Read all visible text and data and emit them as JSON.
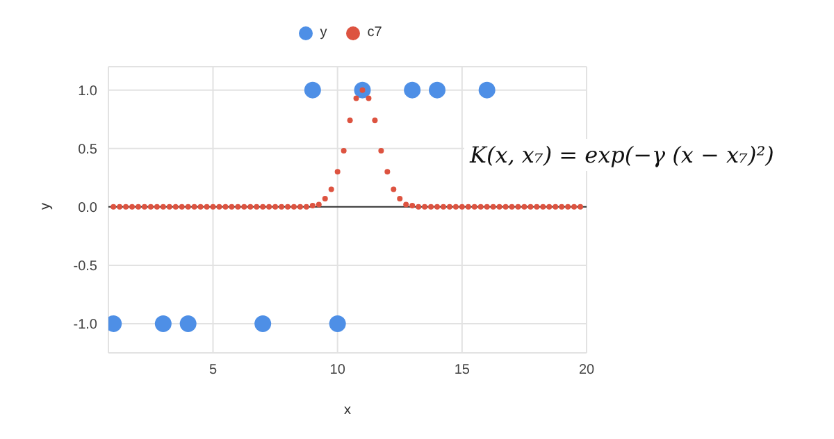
{
  "chart_data": {
    "type": "scatter",
    "xlabel": "x",
    "ylabel": "y",
    "xlim": [
      0.8,
      20
    ],
    "xticks": [
      5,
      10,
      15,
      20
    ],
    "ylim": [
      -1.25,
      1.2
    ],
    "yticks": [
      {
        "value": -1,
        "label": "-1.0"
      },
      {
        "value": -0.5,
        "label": "-0.5"
      },
      {
        "value": 0,
        "label": "0.0"
      },
      {
        "value": 0.5,
        "label": "0.5"
      },
      {
        "value": 1,
        "label": "1.0"
      }
    ],
    "grid": true,
    "legend": "top",
    "marker": "circle",
    "ref_lines": [
      {
        "axis": "y",
        "value": 0,
        "color": "#333333"
      }
    ],
    "annotations": [
      "K(x, x₇) = exp(−γ (x − x₇)²)"
    ],
    "series": [
      {
        "name": "y",
        "color": "#4e8fe6",
        "x": [
          1,
          3,
          4,
          7,
          9,
          10,
          11,
          13,
          14,
          16
        ],
        "values": [
          -1,
          -1,
          -1,
          -1,
          1,
          -1,
          1,
          1,
          1,
          1
        ]
      },
      {
        "name": "c7",
        "color": "#dd5340",
        "x": [
          1,
          1.25,
          1.5,
          1.75,
          2,
          2.25,
          2.5,
          2.75,
          3,
          3.25,
          3.5,
          3.75,
          4,
          4.25,
          4.5,
          4.75,
          5,
          5.25,
          5.5,
          5.75,
          6,
          6.25,
          6.5,
          6.75,
          7,
          7.25,
          7.5,
          7.75,
          8,
          8.25,
          8.5,
          8.75,
          9,
          9.25,
          9.5,
          9.75,
          10,
          10.25,
          10.5,
          10.75,
          11,
          11.25,
          11.5,
          11.75,
          12,
          12.25,
          12.5,
          12.75,
          13,
          13.25,
          13.5,
          13.75,
          14,
          14.25,
          14.5,
          14.75,
          15,
          15.25,
          15.5,
          15.75,
          16,
          16.25,
          16.5,
          16.75,
          17,
          17.25,
          17.5,
          17.75,
          18,
          18.25,
          18.5,
          18.75,
          19,
          19.25,
          19.5,
          19.75
        ],
        "values": [
          0,
          0,
          0,
          0,
          0,
          0,
          0,
          0,
          0,
          0,
          0,
          0,
          0,
          0,
          0,
          0,
          0,
          0,
          0,
          0,
          0,
          0,
          0,
          0,
          0,
          0,
          0,
          0,
          0,
          0,
          0,
          0,
          0.01,
          0.02,
          0.07,
          0.15,
          0.3,
          0.48,
          0.74,
          0.93,
          1,
          0.93,
          0.74,
          0.48,
          0.3,
          0.15,
          0.07,
          0.02,
          0.01,
          0,
          0,
          0,
          0,
          0,
          0,
          0,
          0,
          0,
          0,
          0,
          0,
          0,
          0,
          0,
          0,
          0,
          0,
          0,
          0,
          0,
          0,
          0,
          0,
          0,
          0,
          0
        ]
      }
    ]
  }
}
